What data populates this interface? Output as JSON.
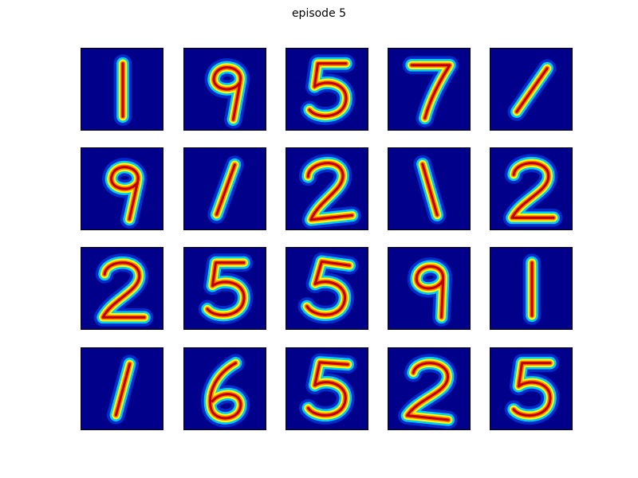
{
  "figure": {
    "title": "episode 5",
    "colormap": "jet",
    "colors": {
      "background": "#00008b",
      "halo_outer": "#0050ff",
      "halo_mid": "#00e0ff",
      "core_outer": "#ffff00",
      "core_inner": "#ff8000",
      "core_center": "#c00000"
    },
    "grid": {
      "rows": 4,
      "cols": 5
    },
    "digits": [
      [
        "1",
        "9",
        "5",
        "7",
        "1"
      ],
      [
        "9",
        "1",
        "2",
        "1",
        "2"
      ],
      [
        "2",
        "5",
        "5",
        "9",
        "1"
      ],
      [
        "1",
        "6",
        "5",
        "2",
        "5"
      ]
    ]
  }
}
